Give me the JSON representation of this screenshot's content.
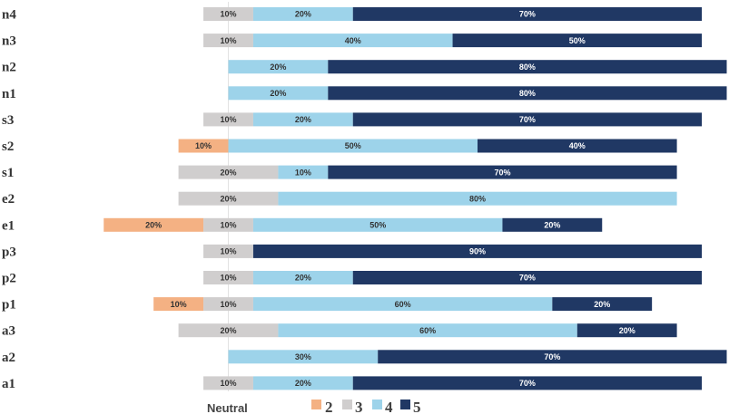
{
  "chart_data": {
    "type": "bar",
    "orientation": "horizontal",
    "stacked": "diverging",
    "categories": [
      "n4",
      "n3",
      "n2",
      "n1",
      "s3",
      "s2",
      "s1",
      "e2",
      "e1",
      "p3",
      "p2",
      "p1",
      "a3",
      "a2",
      "a1"
    ],
    "series": [
      {
        "name": "2",
        "color": "#F4B183",
        "values": [
          0,
          0,
          0,
          0,
          0,
          10,
          0,
          0,
          20,
          0,
          0,
          10,
          0,
          0,
          0
        ]
      },
      {
        "name": "3",
        "color": "#D0CECE",
        "values": [
          10,
          10,
          0,
          0,
          10,
          0,
          20,
          20,
          10,
          10,
          10,
          10,
          20,
          0,
          10
        ]
      },
      {
        "name": "4",
        "color": "#9DD3EA",
        "values": [
          20,
          40,
          20,
          20,
          20,
          50,
          10,
          80,
          50,
          0,
          20,
          60,
          60,
          30,
          20
        ]
      },
      {
        "name": "5",
        "color": "#203864",
        "values": [
          70,
          50,
          80,
          80,
          70,
          40,
          70,
          0,
          20,
          90,
          70,
          20,
          20,
          70,
          70
        ]
      }
    ],
    "value_labels": [
      [
        "",
        "10%",
        "20%",
        "70%"
      ],
      [
        "",
        "10%",
        "40%",
        "50%"
      ],
      [
        "",
        "",
        "20%",
        "80%"
      ],
      [
        "",
        "",
        "20%",
        "80%"
      ],
      [
        "",
        "10%",
        "20%",
        "70%"
      ],
      [
        "10%",
        "",
        "50%",
        "40%"
      ],
      [
        "",
        "20%",
        "10%",
        "70%"
      ],
      [
        "",
        "20%",
        "80%",
        ""
      ],
      [
        "20%",
        "10%",
        "50%",
        "20%"
      ],
      [
        "",
        "10%",
        "",
        "90%"
      ],
      [
        "",
        "10%",
        "20%",
        "70%"
      ],
      [
        "10%",
        "10%",
        "60%",
        "20%"
      ],
      [
        "",
        "20%",
        "60%",
        "20%"
      ],
      [
        "",
        "",
        "30%",
        "70%"
      ],
      [
        "",
        "10%",
        "20%",
        "70%"
      ]
    ],
    "neutral_label": "Neutral",
    "legend": {
      "position": "bottom",
      "entries": [
        "2",
        "3",
        "4",
        "5"
      ]
    },
    "title": "",
    "xlabel": "",
    "ylabel": ""
  }
}
